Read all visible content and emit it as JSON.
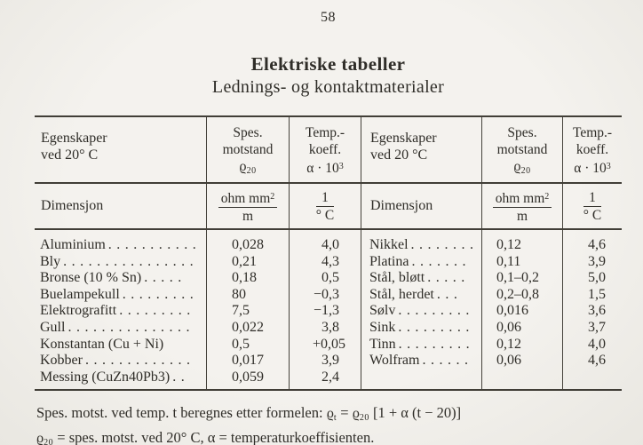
{
  "page_number": "58",
  "title": "Elektriske tabeller",
  "subtitle": "Lednings- og kontaktmaterialer",
  "table": {
    "header_left": {
      "props1": "Egenskaper",
      "props2": "ved 20° C",
      "res1": "Spes.",
      "res2": "motstand",
      "res_sym": "ϱ",
      "res_sub": "20",
      "temp1": "Temp.-",
      "temp2": "koeff.",
      "temp_sym": "α · 10",
      "temp_sup": "3",
      "dim": "Dimensjon",
      "res_unit_num": "ohm mm",
      "res_unit_sup": "2",
      "res_unit_den": "m",
      "temp_unit_num": "1",
      "temp_unit_den": "° C"
    },
    "header_right": {
      "props1": "Egenskaper",
      "props2": "ved 20 °C",
      "res1": "Spes.",
      "res2": "motstand",
      "res_sym": "ϱ",
      "res_sub": "20",
      "temp1": "Temp.-",
      "temp2": "koeff.",
      "temp_sym": "α · 10",
      "temp_sup": "3",
      "dim": "Dimensjon",
      "res_unit_num": "ohm mm",
      "res_unit_sup": "2",
      "res_unit_den": "m",
      "temp_unit_num": "1",
      "temp_unit_den": "° C"
    },
    "rows_left": [
      {
        "name": "Aluminium",
        "dots": "...........",
        "rho": "0,028",
        "alpha": "4,0"
      },
      {
        "name": "Bly",
        "dots": "................",
        "rho": "0,21",
        "alpha": "4,3"
      },
      {
        "name": "Bronse (10 % Sn)",
        "dots": ".....",
        "rho": "0,18",
        "alpha": "0,5"
      },
      {
        "name": "Buelampekull",
        "dots": ".........",
        "rho": "80",
        "alpha": "−0,3"
      },
      {
        "name": "Elektrografitt",
        "dots": ".........",
        "rho": "7,5",
        "alpha": "−1,3"
      },
      {
        "name": "Gull",
        "dots": "...............",
        "rho": "0,022",
        "alpha": "3,8"
      },
      {
        "name": "Konstantan (Cu + Ni)",
        "dots": "",
        "rho": "0,5",
        "alpha": "+0,05"
      },
      {
        "name": "Kobber",
        "dots": ".............",
        "rho": "0,017",
        "alpha": "3,9"
      },
      {
        "name": "Messing (CuZn40Pb3)",
        "dots": "..",
        "rho": "0,059",
        "alpha": "2,4"
      }
    ],
    "rows_right": [
      {
        "name": "Nikkel",
        "dots": "........",
        "rho": "0,12",
        "alpha": "4,6"
      },
      {
        "name": "Platina",
        "dots": ".......",
        "rho": "0,11",
        "alpha": "3,9"
      },
      {
        "name": "Stål, bløtt",
        "dots": ".....",
        "rho": "0,1–0,2",
        "alpha": "5,0"
      },
      {
        "name": "Stål, herdet",
        "dots": "...",
        "rho": "0,2–0,8",
        "alpha": "1,5"
      },
      {
        "name": "Sølv",
        "dots": ".........",
        "rho": "0,016",
        "alpha": "3,6"
      },
      {
        "name": "Sink",
        "dots": ".........",
        "rho": "0,06",
        "alpha": "3,7"
      },
      {
        "name": "Tinn",
        "dots": ".........",
        "rho": "0,12",
        "alpha": "4,0"
      },
      {
        "name": "Wolfram",
        "dots": "......",
        "rho": "0,06",
        "alpha": "4,6"
      }
    ]
  },
  "footnote": {
    "l1a": "Spes. motst. ved temp. t beregnes etter formelen: ",
    "l1_rho1": "ϱ",
    "l1_sub1": "t",
    "l1b": " = ",
    "l1_rho2": "ϱ",
    "l1_sub2": "20",
    "l1c": " [1 + α (t − 20)]",
    "l2_rho": "ϱ",
    "l2_sub": "20",
    "l2": " = spes. motst. ved 20° C, α = temperaturkoeffisienten."
  }
}
